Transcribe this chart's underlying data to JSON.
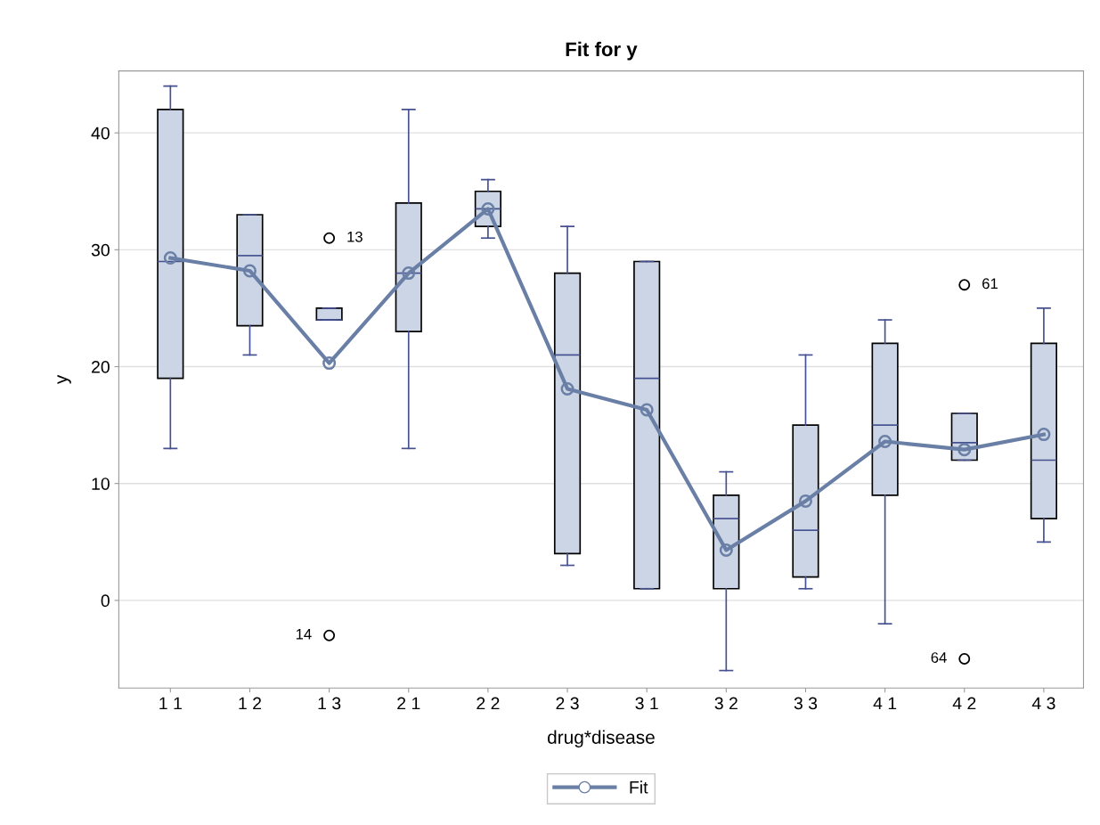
{
  "chart_data": {
    "type": "box",
    "title": "Fit for y",
    "xlabel": "drug*disease",
    "ylabel": "y",
    "categories": [
      "1 1",
      "1 2",
      "1 3",
      "2 1",
      "2 2",
      "2 3",
      "3 1",
      "3 2",
      "3 3",
      "4 1",
      "4 2",
      "4 3"
    ],
    "boxes": [
      {
        "low": 13,
        "q1": 19,
        "median": 29,
        "q3": 42,
        "high": 44
      },
      {
        "low": 21,
        "q1": 23.5,
        "median": 29.5,
        "q3": 33,
        "high": 33
      },
      {
        "low": 24,
        "q1": 24,
        "median": 24,
        "q3": 25,
        "high": 25,
        "outliers": [
          31,
          -3
        ]
      },
      {
        "low": 13,
        "q1": 23,
        "median": 28,
        "q3": 34,
        "high": 42
      },
      {
        "low": 31,
        "q1": 32,
        "median": 33.5,
        "q3": 35,
        "high": 36
      },
      {
        "low": 3,
        "q1": 4,
        "median": 21,
        "q3": 28,
        "high": 32
      },
      {
        "low": 1,
        "q1": 1,
        "median": 19,
        "q3": 29,
        "high": 29
      },
      {
        "low": -6,
        "q1": 1,
        "median": 7,
        "q3": 9,
        "high": 11
      },
      {
        "low": 1,
        "q1": 2,
        "median": 6,
        "q3": 15,
        "high": 21
      },
      {
        "low": -2,
        "q1": 9,
        "median": 15,
        "q3": 22,
        "high": 24
      },
      {
        "low": 12,
        "q1": 12,
        "median": 13.5,
        "q3": 16,
        "high": 16,
        "outliers": [
          27,
          -5
        ]
      },
      {
        "low": 5,
        "q1": 7,
        "median": 12,
        "q3": 22,
        "high": 25
      }
    ],
    "color": "#cbd5e5",
    "series": [
      {
        "name": "Fit",
        "type": "line",
        "color": "#6a7fa6",
        "values": [
          29.3,
          28.2,
          20.3,
          28.0,
          33.5,
          18.1,
          16.3,
          4.3,
          8.5,
          13.6,
          12.9,
          14.2
        ]
      }
    ],
    "marker": "circle",
    "ylim": [
      -7.5,
      45.3
    ],
    "yticks": [
      0,
      10,
      20,
      30,
      40
    ],
    "grid": "y",
    "legend": "bottom",
    "annotations": [
      "13",
      "14",
      "61",
      "64"
    ]
  }
}
